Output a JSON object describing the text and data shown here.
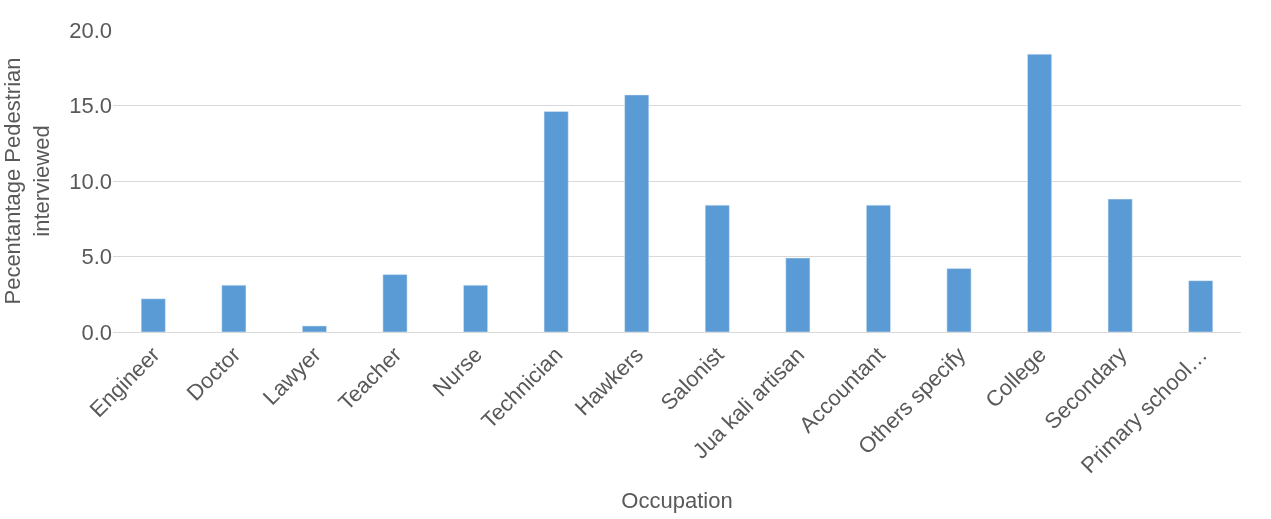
{
  "chart_data": {
    "type": "bar",
    "xlabel": "Occupation",
    "ylabel": "Pecentantage Pedestrian interviewed",
    "categories": [
      "Engineer",
      "Doctor",
      "Lawyer",
      "Teacher",
      "Nurse",
      "Technician",
      "Hawkers",
      "Salonist",
      "Jua kali artisan",
      "Accountant",
      "Others specify",
      "College",
      "Secondary",
      "Primary school…"
    ],
    "values": [
      2.2,
      3.1,
      0.4,
      3.8,
      3.1,
      14.6,
      15.7,
      8.4,
      4.9,
      8.4,
      4.2,
      18.4,
      8.8,
      3.4
    ],
    "color": "#5b9bd5",
    "ylim": [
      0,
      20
    ],
    "yticks": [
      {
        "value": 0,
        "label": "0.0"
      },
      {
        "value": 5,
        "label": "5.0"
      },
      {
        "value": 10,
        "label": "10.0"
      },
      {
        "value": 15,
        "label": "15.0"
      },
      {
        "value": 20,
        "label": "20.0"
      }
    ],
    "grid": "y"
  }
}
